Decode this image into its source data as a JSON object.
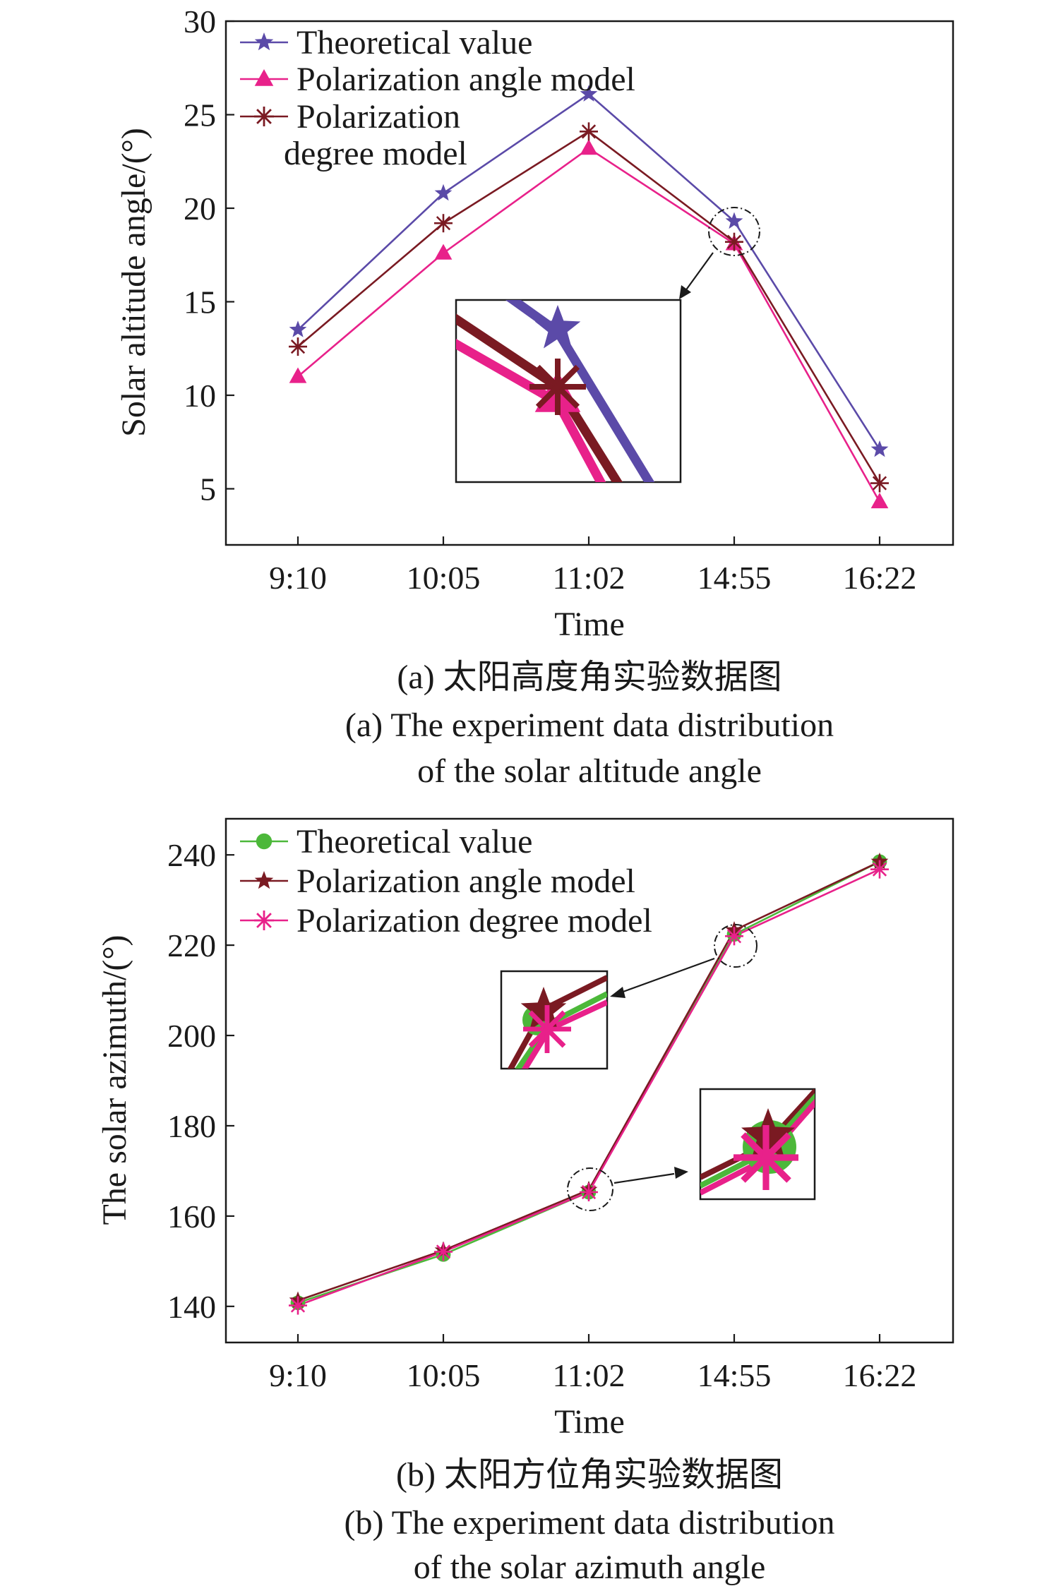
{
  "colors": {
    "purple": "#5b4aa8",
    "pink": "#e8218a",
    "darkred": "#7a1a22",
    "green": "#4cb83a"
  },
  "chart_data": [
    {
      "type": "line",
      "x": [
        "9:10",
        "10:05",
        "11:02",
        "14:55",
        "16:22"
      ],
      "xlabel": "Time",
      "ylabel": "Solar altitude angle/(°)",
      "ylim": [
        2,
        30
      ],
      "yticks": [
        5,
        10,
        15,
        20,
        25,
        30
      ],
      "grid": false,
      "legend_position": "top-left",
      "series": [
        {
          "name": "Theoretical value",
          "marker": "star",
          "color": "#5b4aa8",
          "values": [
            13.5,
            20.8,
            26.1,
            19.3,
            7.1
          ]
        },
        {
          "name": "Polarization angle model",
          "marker": "triangle",
          "color": "#e8218a",
          "values": [
            11.0,
            17.6,
            23.2,
            18.1,
            4.3
          ]
        },
        {
          "name": "Polarization degree model",
          "legend_lines": [
            "Polarization",
            "degree model"
          ],
          "marker": "asterisk",
          "color": "#7a1a22",
          "values": [
            12.6,
            19.2,
            24.1,
            18.2,
            5.3
          ]
        }
      ],
      "caption_cn": "(a) 太阳高度角实验数据图",
      "caption_en": [
        "(a) The experiment data distribution",
        "of the solar altitude angle"
      ]
    },
    {
      "type": "line",
      "x": [
        "9:10",
        "10:05",
        "11:02",
        "14:55",
        "16:22"
      ],
      "xlabel": "Time",
      "ylabel": "The solar azimuth/(°)",
      "ylim": [
        132,
        248
      ],
      "yticks": [
        140,
        160,
        180,
        200,
        220,
        240
      ],
      "grid": false,
      "legend_position": "top-left",
      "series": [
        {
          "name": "Theoretical value",
          "marker": "circle",
          "color": "#4cb83a",
          "values": [
            140.8,
            151.5,
            165.3,
            222.4,
            238.5
          ]
        },
        {
          "name": "Polarization angle model",
          "marker": "star",
          "color": "#7a1a22",
          "values": [
            141.3,
            152.4,
            165.8,
            223.3,
            238.5
          ]
        },
        {
          "name": "Polarization degree model",
          "marker": "asterisk",
          "color": "#e8218a",
          "values": [
            140.2,
            152.1,
            165.3,
            222.0,
            236.8
          ]
        }
      ],
      "caption_cn": "(b) 太阳方位角实验数据图",
      "caption_en": [
        "(b) The experiment data distribution",
        "of the solar azimuth angle"
      ]
    }
  ]
}
